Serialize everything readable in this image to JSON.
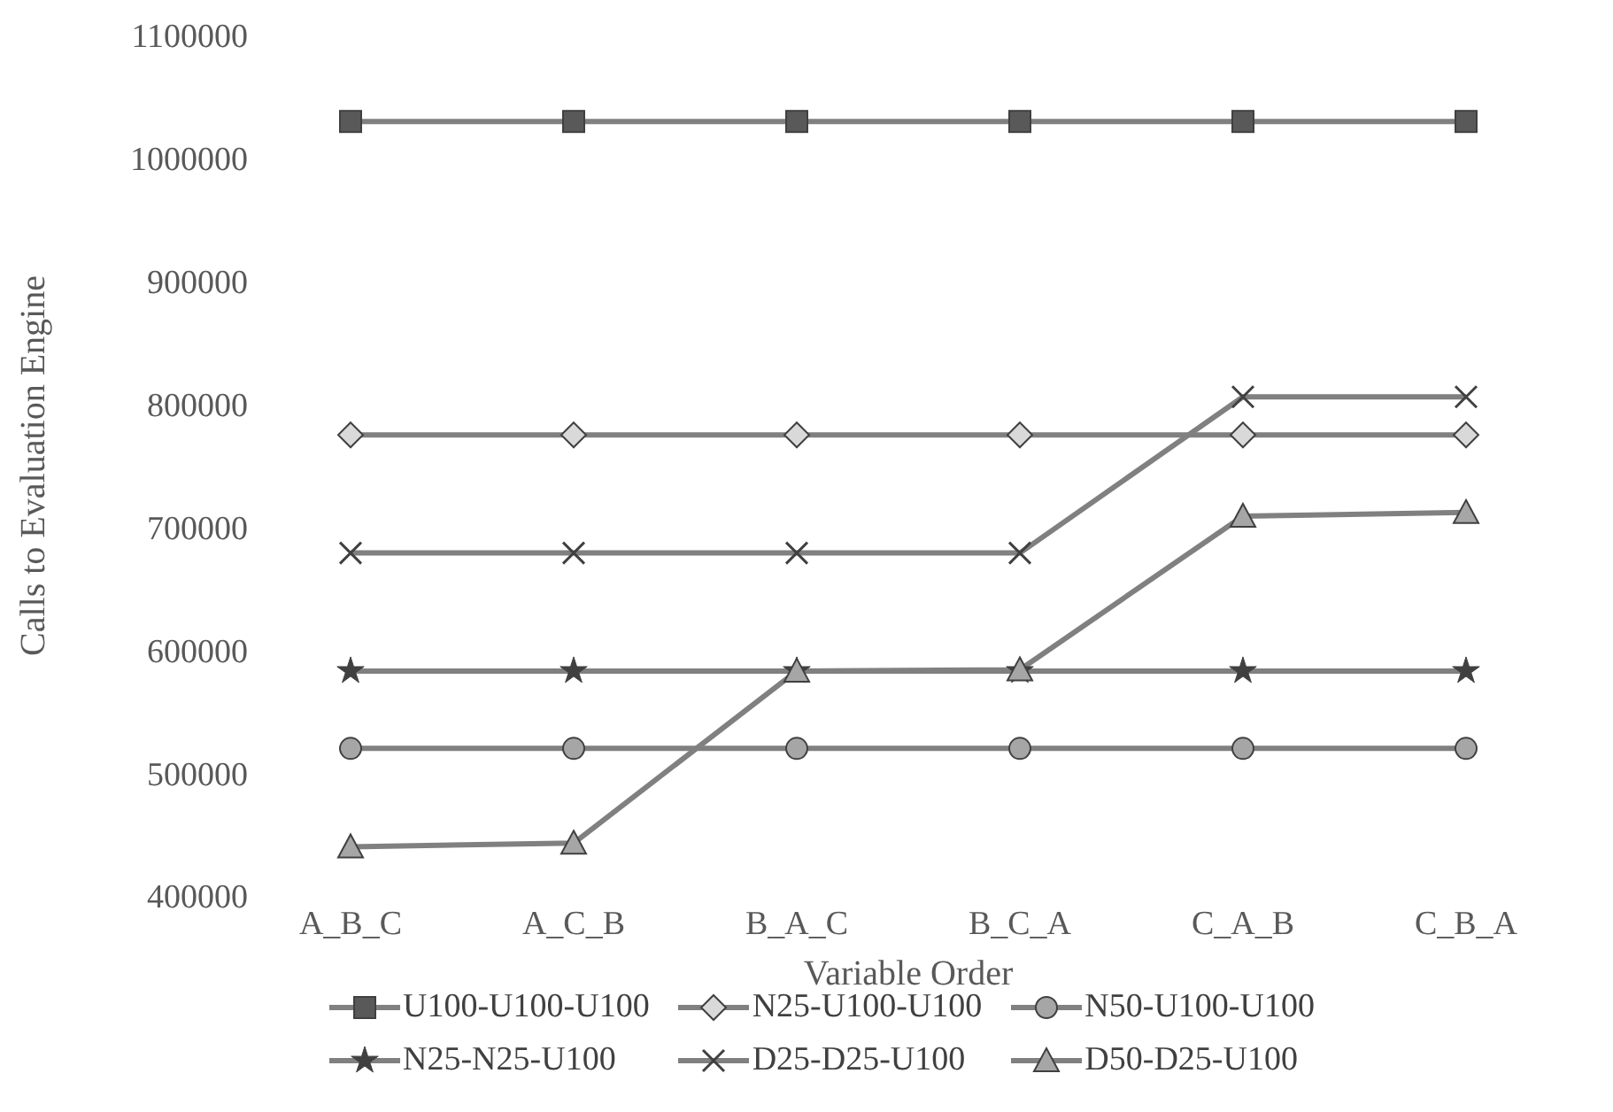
{
  "chart_data": {
    "type": "line",
    "xlabel": "Variable Order",
    "ylabel": "Calls to Evaluation Engine",
    "categories": [
      "A_B_C",
      "A_C_B",
      "B_A_C",
      "B_C_A",
      "C_A_B",
      "C_B_A"
    ],
    "ylim": [
      400000,
      1100000
    ],
    "yticks": [
      400000,
      500000,
      600000,
      700000,
      800000,
      900000,
      1000000,
      1100000
    ],
    "grid": false,
    "legend": "bottom",
    "series": [
      {
        "name": "U100-U100-U100",
        "color": "#808080",
        "marker": "square",
        "values": [
          1030000,
          1030000,
          1030000,
          1030000,
          1030000,
          1030000
        ]
      },
      {
        "name": "N25-U100-U100",
        "color": "#808080",
        "marker": "diamond",
        "values": [
          775000,
          775000,
          775000,
          775000,
          775000,
          775000
        ]
      },
      {
        "name": "N50-U100-U100",
        "color": "#808080",
        "marker": "circle",
        "values": [
          520000,
          520000,
          520000,
          520000,
          520000,
          520000
        ]
      },
      {
        "name": "N25-N25-U100",
        "color": "#808080",
        "marker": "star",
        "values": [
          583000,
          583000,
          583000,
          583000,
          583000,
          583000
        ]
      },
      {
        "name": "D25-D25-U100",
        "color": "#808080",
        "marker": "cross",
        "values": [
          679000,
          679000,
          679000,
          679000,
          806000,
          806000
        ]
      },
      {
        "name": "D50-D25-U100",
        "color": "#808080",
        "marker": "triangle",
        "values": [
          440000,
          443000,
          583000,
          584000,
          709000,
          712000
        ]
      }
    ]
  }
}
